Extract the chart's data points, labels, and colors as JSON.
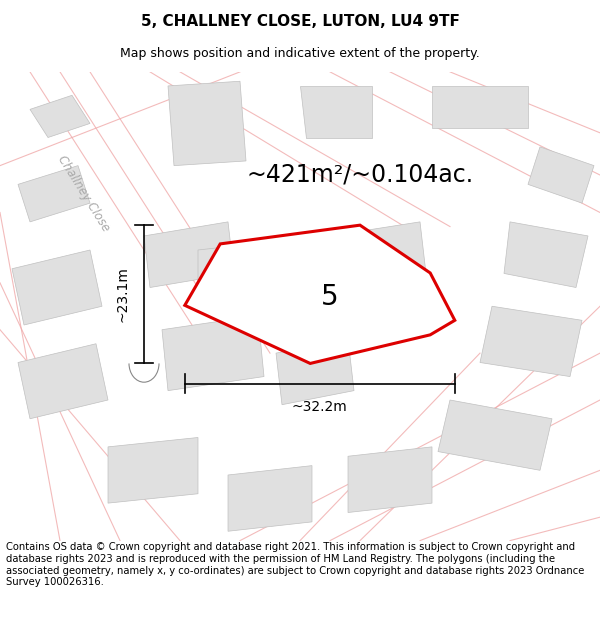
{
  "title_line1": "5, CHALLNEY CLOSE, LUTON, LU4 9TF",
  "title_line2": "Map shows position and indicative extent of the property.",
  "area_text": "~421m²/~0.104ac.",
  "label_5": "5",
  "dim_horizontal": "~32.2m",
  "dim_vertical": "~23.1m",
  "footer_text": "Contains OS data © Crown copyright and database right 2021. This information is subject to Crown copyright and database rights 2023 and is reproduced with the permission of HM Land Registry. The polygons (including the associated geometry, namely x, y co-ordinates) are subject to Crown copyright and database rights 2023 Ordnance Survey 100026316.",
  "map_bg": "#f9f9f9",
  "plot_fill": "#ffffff",
  "plot_edge": "#dd0000",
  "neighbor_fill": "#e0e0e0",
  "neighbor_edge": "#c0c0c0",
  "road_line_color": "#f0aaaa",
  "road_fill": "#eeeeee",
  "title_fontsize": 11,
  "subtitle_fontsize": 9,
  "area_fontsize": 17,
  "label_fontsize": 20,
  "dim_fontsize": 10,
  "footer_fontsize": 7.2,
  "challney_fontsize": 8.5
}
